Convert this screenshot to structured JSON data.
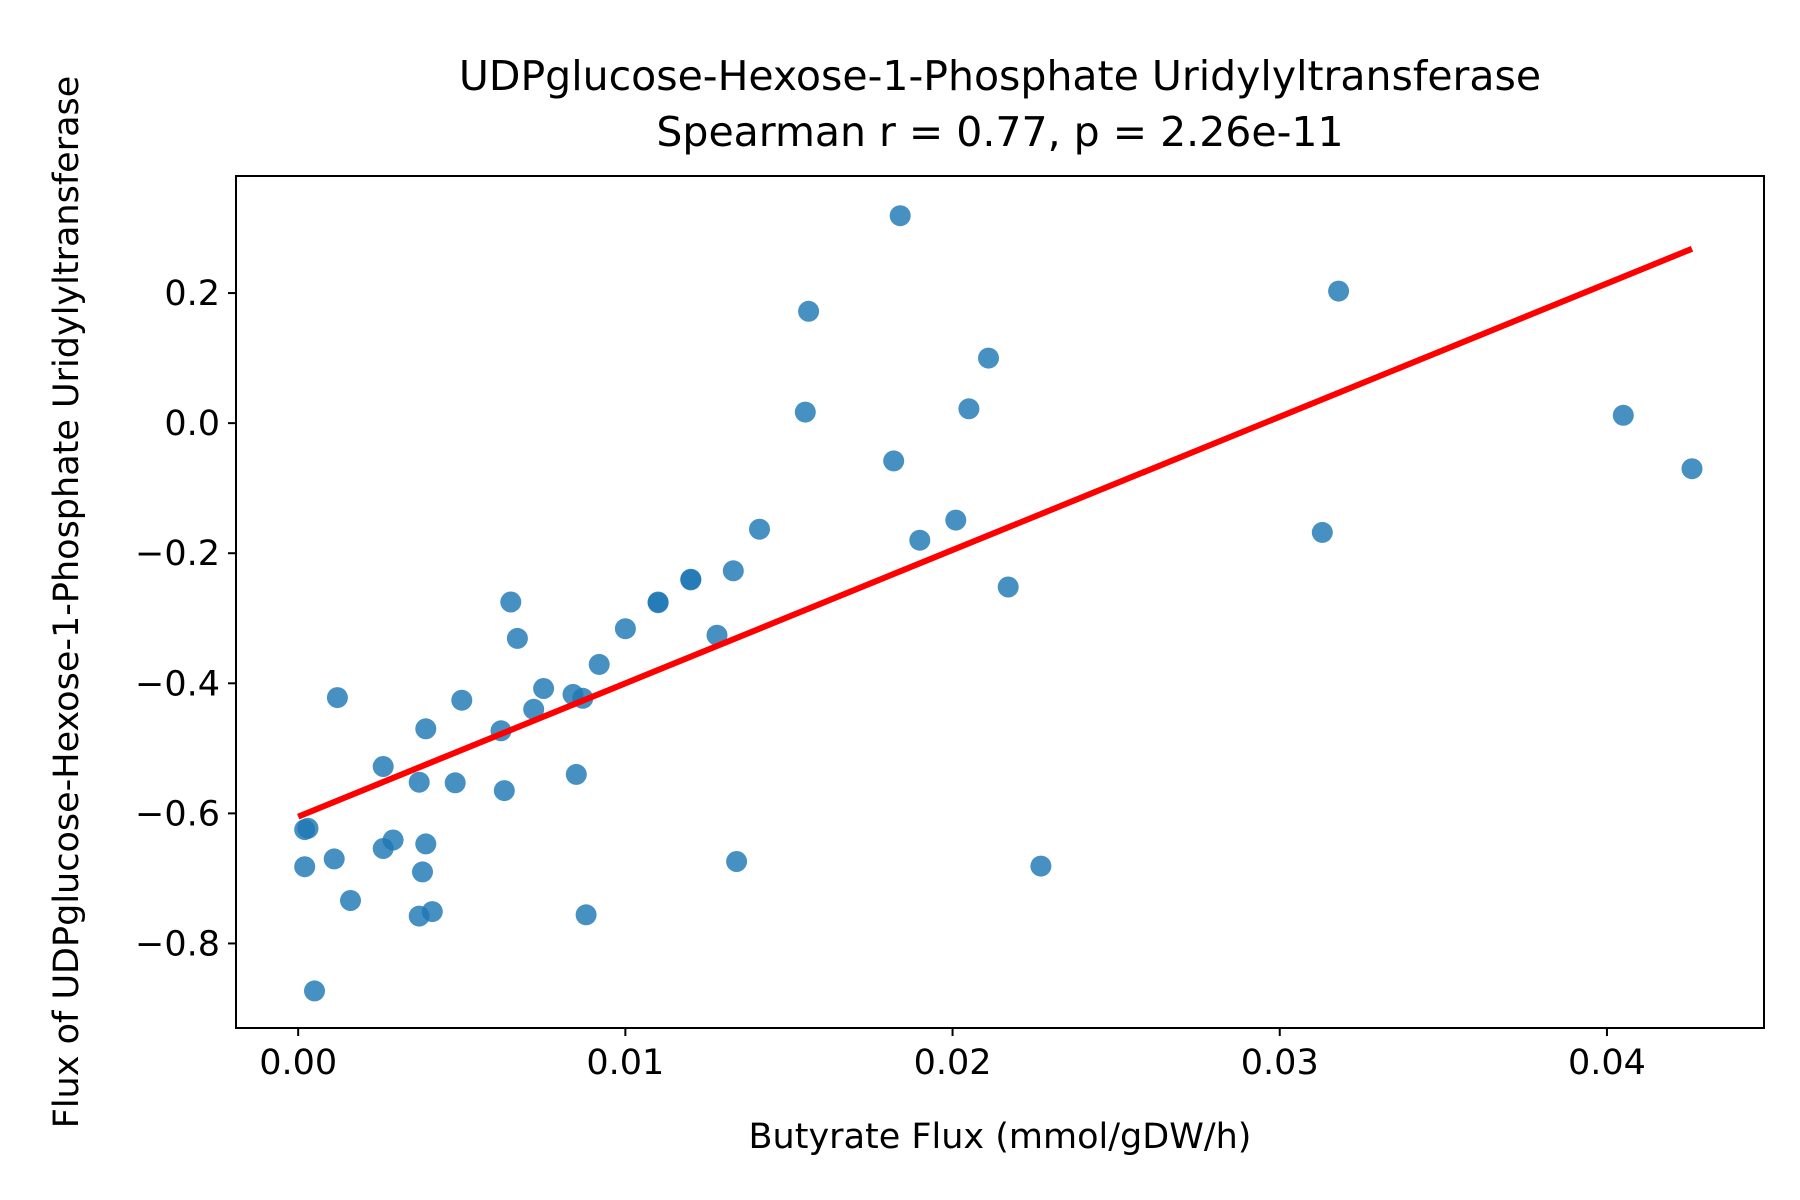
{
  "chart_data": {
    "type": "scatter",
    "title": "UDPglucose-Hexose-1-Phosphate Uridylyltransferase",
    "subtitle": "Spearman r = 0.77, p = 2.26e-11",
    "xlabel": "Butyrate Flux (mmol/gDW/h)",
    "ylabel": "Flux of UDPglucose-Hexose-1-Phosphate Uridylyltransferase",
    "xlim": [
      -0.0019,
      0.0448
    ],
    "ylim": [
      -0.93,
      0.38
    ],
    "xticks": [
      0.0,
      0.01,
      0.02,
      0.03,
      0.04
    ],
    "xtick_labels": [
      "0.00",
      "0.01",
      "0.02",
      "0.03",
      "0.04"
    ],
    "yticks": [
      0.2,
      0.0,
      -0.2,
      -0.4,
      -0.6,
      -0.8
    ],
    "ytick_labels": [
      "0.2",
      "0.0",
      "−0.2",
      "−0.4",
      "−0.6",
      "−0.8"
    ],
    "grid": false,
    "point_color": "#1f77b4",
    "line_color": "#ff0000",
    "points": [
      {
        "x": 0.0002,
        "y": -0.625
      },
      {
        "x": 0.0003,
        "y": -0.623
      },
      {
        "x": 0.0002,
        "y": -0.682
      },
      {
        "x": 0.0005,
        "y": -0.873
      },
      {
        "x": 0.0011,
        "y": -0.67
      },
      {
        "x": 0.0012,
        "y": -0.422
      },
      {
        "x": 0.0016,
        "y": -0.734
      },
      {
        "x": 0.0026,
        "y": -0.654
      },
      {
        "x": 0.0026,
        "y": -0.528
      },
      {
        "x": 0.0029,
        "y": -0.641
      },
      {
        "x": 0.0037,
        "y": -0.552
      },
      {
        "x": 0.0037,
        "y": -0.758
      },
      {
        "x": 0.0038,
        "y": -0.69
      },
      {
        "x": 0.0039,
        "y": -0.647
      },
      {
        "x": 0.0039,
        "y": -0.47
      },
      {
        "x": 0.0041,
        "y": -0.751
      },
      {
        "x": 0.0048,
        "y": -0.553
      },
      {
        "x": 0.005,
        "y": -0.426
      },
      {
        "x": 0.0062,
        "y": -0.473
      },
      {
        "x": 0.0063,
        "y": -0.565
      },
      {
        "x": 0.0065,
        "y": -0.275
      },
      {
        "x": 0.0067,
        "y": -0.331
      },
      {
        "x": 0.0072,
        "y": -0.44
      },
      {
        "x": 0.0075,
        "y": -0.408
      },
      {
        "x": 0.0084,
        "y": -0.417
      },
      {
        "x": 0.0085,
        "y": -0.54
      },
      {
        "x": 0.0087,
        "y": -0.423
      },
      {
        "x": 0.0088,
        "y": -0.756
      },
      {
        "x": 0.0092,
        "y": -0.371
      },
      {
        "x": 0.01,
        "y": -0.316
      },
      {
        "x": 0.011,
        "y": -0.275
      },
      {
        "x": 0.011,
        "y": -0.276
      },
      {
        "x": 0.012,
        "y": -0.24
      },
      {
        "x": 0.012,
        "y": -0.241
      },
      {
        "x": 0.0128,
        "y": -0.326
      },
      {
        "x": 0.0133,
        "y": -0.227
      },
      {
        "x": 0.0134,
        "y": -0.674
      },
      {
        "x": 0.0141,
        "y": -0.163
      },
      {
        "x": 0.0155,
        "y": 0.017
      },
      {
        "x": 0.0156,
        "y": 0.172
      },
      {
        "x": 0.0182,
        "y": -0.058
      },
      {
        "x": 0.0184,
        "y": 0.319
      },
      {
        "x": 0.019,
        "y": -0.18
      },
      {
        "x": 0.0201,
        "y": -0.149
      },
      {
        "x": 0.0205,
        "y": 0.022
      },
      {
        "x": 0.0211,
        "y": 0.1
      },
      {
        "x": 0.0217,
        "y": -0.252
      },
      {
        "x": 0.0227,
        "y": -0.681
      },
      {
        "x": 0.0313,
        "y": -0.168
      },
      {
        "x": 0.0318,
        "y": 0.203
      },
      {
        "x": 0.0405,
        "y": 0.012
      },
      {
        "x": 0.0426,
        "y": -0.07
      }
    ],
    "fit_line": {
      "x": [
        0.0,
        0.0426
      ],
      "y": [
        -0.605,
        0.268
      ]
    }
  }
}
